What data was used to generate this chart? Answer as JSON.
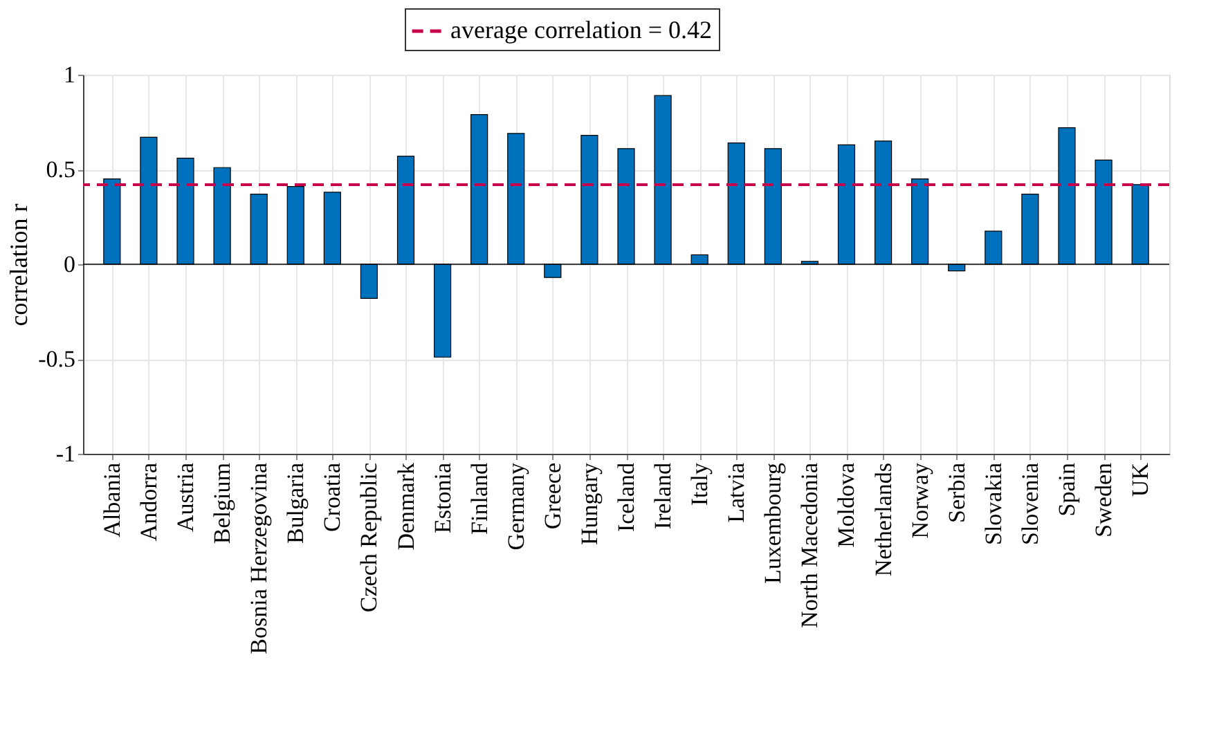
{
  "chart_data": {
    "type": "bar",
    "ylabel": "correlation r",
    "categories": [
      "Albania",
      "Andorra",
      "Austria",
      "Belgium",
      "Bosnia Herzegovina",
      "Bulgaria",
      "Croatia",
      "Czech Republic",
      "Denmark",
      "Estonia",
      "Finland",
      "Germany",
      "Greece",
      "Hungary",
      "Iceland",
      "Ireland",
      "Italy",
      "Latvia",
      "Luxembourg",
      "North Macedonia",
      "Moldova",
      "Netherlands",
      "Norway",
      "Serbia",
      "Slovakia",
      "Slovenia",
      "Spain",
      "Sweden",
      "UK"
    ],
    "values": [
      0.45,
      0.67,
      0.56,
      0.51,
      0.37,
      0.41,
      0.38,
      -0.18,
      0.57,
      -0.49,
      0.79,
      0.69,
      -0.07,
      0.68,
      0.61,
      0.89,
      0.05,
      0.64,
      0.61,
      0.015,
      0.63,
      0.65,
      0.45,
      -0.035,
      0.175,
      0.37,
      0.72,
      0.55,
      0.42
    ],
    "color": "#0072bd",
    "ylim": [
      -1,
      1
    ],
    "yticks": [
      -1,
      -0.5,
      0,
      0.5,
      1
    ],
    "grid": true,
    "ref_lines": [
      {
        "axis": "y",
        "value": 0.42,
        "label": "average correlation = 0.42",
        "color": "#c7004c",
        "line_style": "dashed"
      }
    ],
    "legend": "top"
  }
}
